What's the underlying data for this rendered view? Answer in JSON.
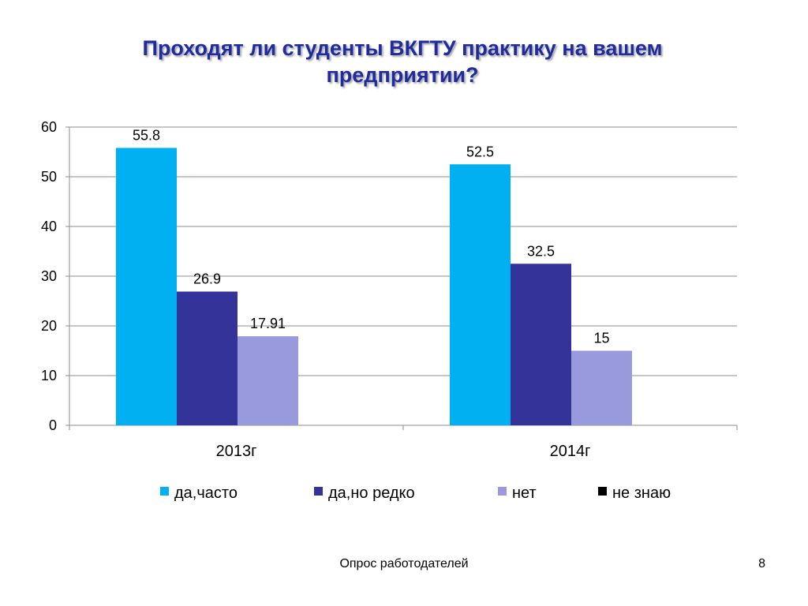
{
  "slide": {
    "title": "Проходят ли студенты ВКГТУ практику на вашем предприятии?",
    "footer": "Опрос работодателей",
    "page_number": "8"
  },
  "chart_data": {
    "type": "bar",
    "categories": [
      "2013г",
      "2014г"
    ],
    "series": [
      {
        "name": "да,часто",
        "color": "#00b0f0",
        "values": [
          55.8,
          52.5
        ],
        "labels": [
          "55.8",
          "52.5"
        ]
      },
      {
        "name": "да,но редко",
        "color": "#333399",
        "values": [
          26.9,
          32.5
        ],
        "labels": [
          "26.9",
          "32.5"
        ]
      },
      {
        "name": "нет",
        "color": "#9999dd",
        "values": [
          17.91,
          15
        ],
        "labels": [
          "17.91",
          "15"
        ]
      },
      {
        "name": "не знаю",
        "color": "#000000",
        "values": [
          null,
          null
        ],
        "labels": [
          "",
          ""
        ]
      }
    ],
    "ylim": [
      0,
      60
    ],
    "yticks": [
      0,
      10,
      20,
      30,
      40,
      50,
      60
    ],
    "grid": true,
    "legend": "bottom"
  }
}
